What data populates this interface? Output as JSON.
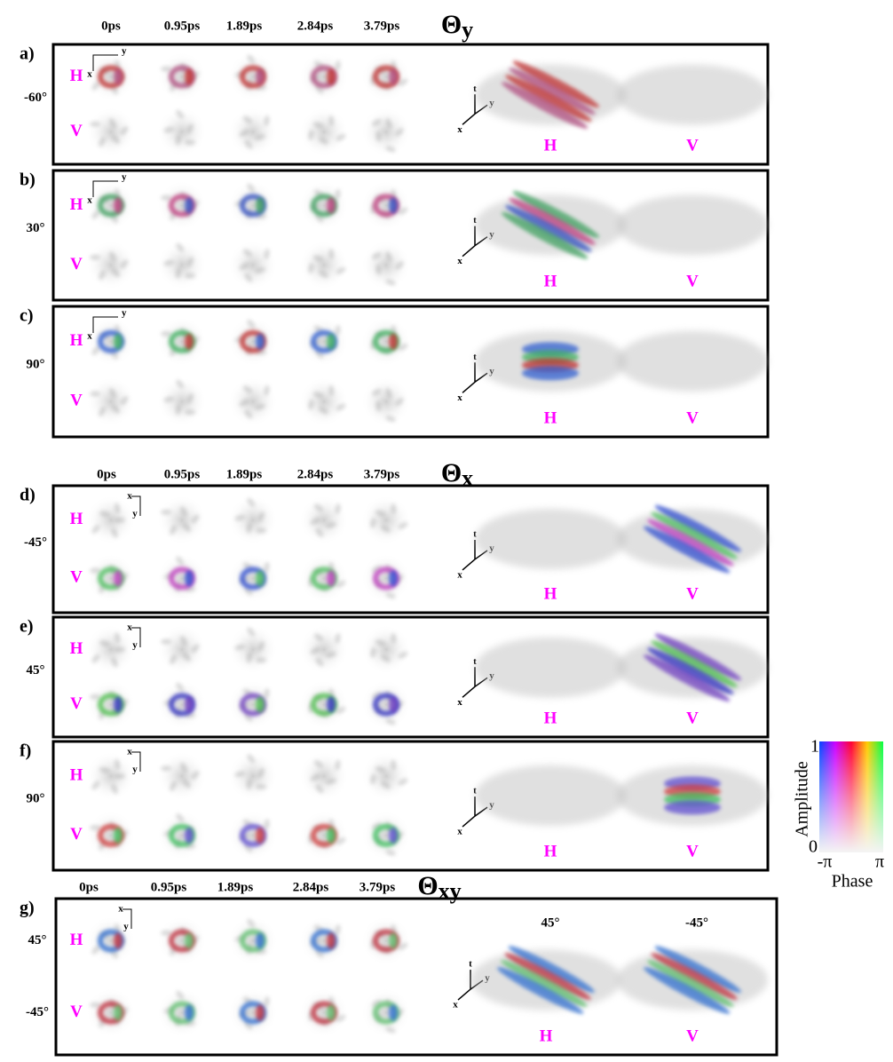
{
  "sections": [
    {
      "title": {
        "symbol": "Θ",
        "subscript": "y"
      },
      "times": [
        "0ps",
        "0.95ps",
        "1.89ps",
        "2.84ps",
        "3.79ps"
      ],
      "panels": [
        {
          "label": "a)",
          "angles": [
            "-60°"
          ],
          "rows": [
            "H",
            "V"
          ],
          "inset_axes": [
            "y",
            "x"
          ],
          "axes3d": [
            "t",
            "y",
            "x"
          ],
          "views": [
            "H",
            "V"
          ]
        },
        {
          "label": "b)",
          "angles": [
            "30°"
          ],
          "rows": [
            "H",
            "V"
          ],
          "inset_axes": [
            "y",
            "x"
          ],
          "axes3d": [
            "t",
            "y",
            "x"
          ],
          "views": [
            "H",
            "V"
          ]
        },
        {
          "label": "c)",
          "angles": [
            "90°"
          ],
          "rows": [
            "H",
            "V"
          ],
          "inset_axes": [
            "y",
            "x"
          ],
          "axes3d": [
            "t",
            "y",
            "x"
          ],
          "views": [
            "H",
            "V"
          ]
        }
      ]
    },
    {
      "title": {
        "symbol": "Θ",
        "subscript": "x"
      },
      "times": [
        "0ps",
        "0.95ps",
        "1.89ps",
        "2.84ps",
        "3.79ps"
      ],
      "panels": [
        {
          "label": "d)",
          "angles": [
            "-45°"
          ],
          "rows": [
            "H",
            "V"
          ],
          "inset_axes": [
            "x",
            "y"
          ],
          "axes3d": [
            "t",
            "y",
            "x"
          ],
          "views": [
            "H",
            "V"
          ]
        },
        {
          "label": "e)",
          "angles": [
            "45°"
          ],
          "rows": [
            "H",
            "V"
          ],
          "inset_axes": [
            "x",
            "y"
          ],
          "axes3d": [
            "t",
            "y",
            "x"
          ],
          "views": [
            "H",
            "V"
          ]
        },
        {
          "label": "f)",
          "angles": [
            "90°"
          ],
          "rows": [
            "H",
            "V"
          ],
          "inset_axes": [
            "x",
            "y"
          ],
          "axes3d": [
            "t",
            "y",
            "x"
          ],
          "views": [
            "H",
            "V"
          ]
        }
      ]
    },
    {
      "title": {
        "symbol": "Θ",
        "subscript": "xy"
      },
      "times": [
        "0ps",
        "0.95ps",
        "1.89ps",
        "2.84ps",
        "3.79ps"
      ],
      "panels": [
        {
          "label": "g)",
          "angles": [
            "45°",
            "-45°"
          ],
          "rows": [
            "H",
            "V"
          ],
          "inset_axes": [
            "x",
            "y"
          ],
          "axes3d": [
            "t",
            "y",
            "x"
          ],
          "views": [
            "H",
            "V"
          ],
          "view_titles": [
            "45°",
            "-45°"
          ]
        }
      ]
    }
  ],
  "colorbar": {
    "title": "Amplitude",
    "max": "1",
    "min": "0",
    "phase_min": "-π",
    "phase_max": "π",
    "xlabel": "Phase"
  }
}
